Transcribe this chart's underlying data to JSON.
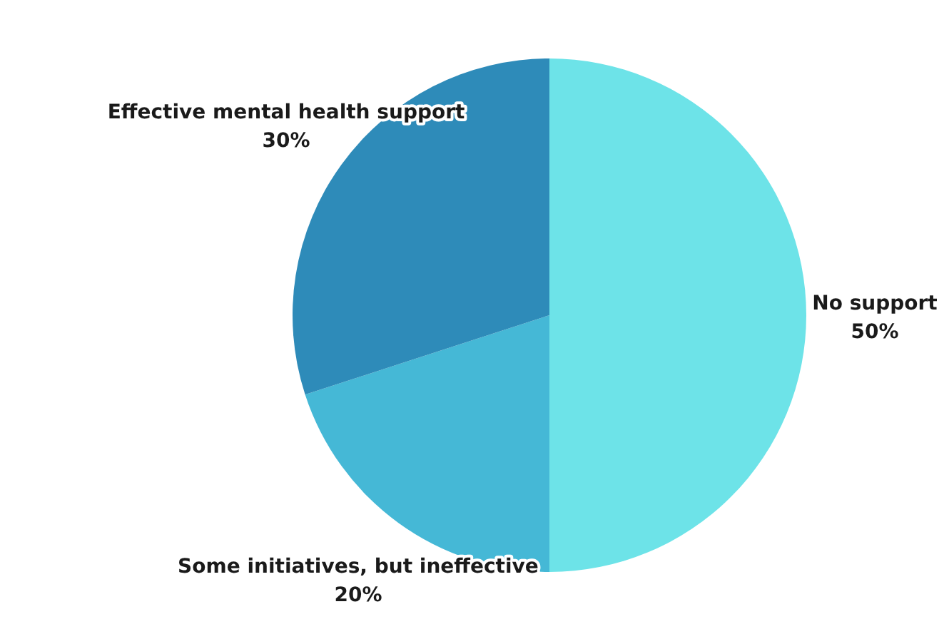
{
  "chart_data": {
    "type": "pie",
    "categories": [
      "No support",
      "Some initiatives, but ineffective",
      "Effective mental health support"
    ],
    "values": [
      50,
      20,
      30
    ],
    "colors": [
      "#6de3e8",
      "#45b8d6",
      "#2e8bb9"
    ],
    "value_labels": [
      "50%",
      "20%",
      "30%"
    ],
    "legend": false
  }
}
